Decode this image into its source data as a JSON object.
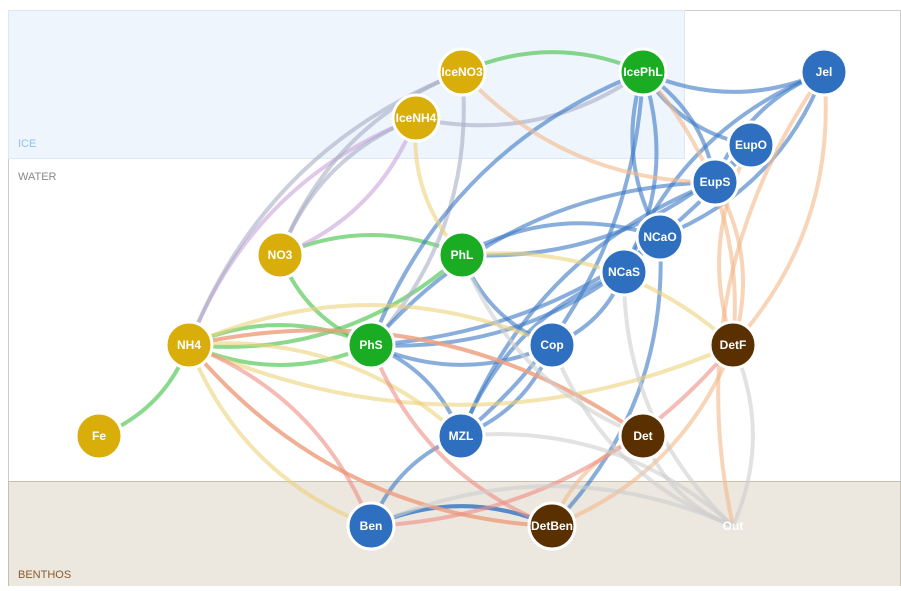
{
  "zones": {
    "ice": "ICE",
    "water": "WATER",
    "benthos": "BENTHOS"
  },
  "nodes": [
    "IceNO3",
    "IcePhL",
    "Jel",
    "IceNH4",
    "EupO",
    "EupS",
    "NO3",
    "PhL",
    "NCaO",
    "NCaS",
    "NH4",
    "PhS",
    "Cop",
    "DetF",
    "Fe",
    "MZL",
    "Det",
    "Ben",
    "DetBen",
    "Out"
  ]
}
